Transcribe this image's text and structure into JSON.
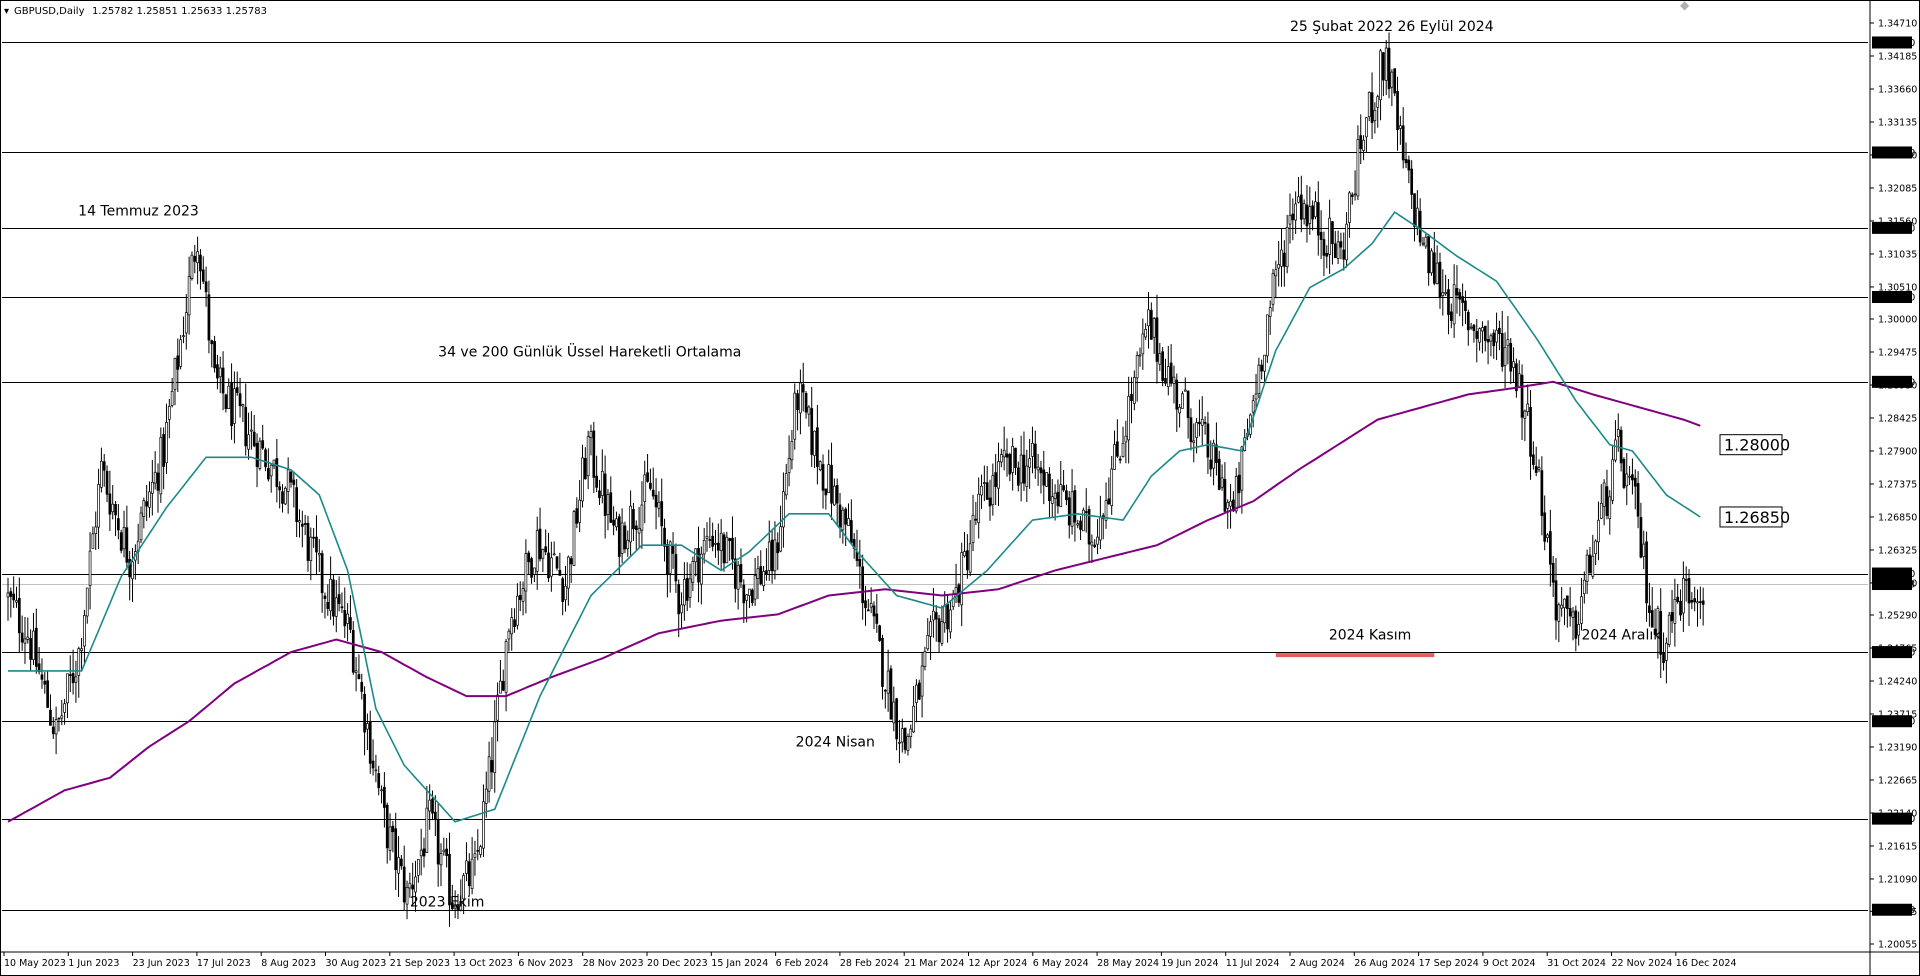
{
  "header": {
    "symbol": "GBPUSD,Daily",
    "ohlc": "1.25782 1.25851 1.25633 1.25783"
  },
  "chart_data": {
    "type": "candlestick",
    "title": "",
    "ylim": [
      1.2006,
      1.3475
    ],
    "grid": false,
    "y_ticks": [
      "1.34710",
      "1.34185",
      "1.33660",
      "1.33135",
      "1.32610",
      "1.32085",
      "1.31560",
      "1.31035",
      "1.30510",
      "1.30000",
      "1.29475",
      "1.28950",
      "1.28425",
      "1.27900",
      "1.27375",
      "1.26850",
      "1.26325",
      "1.25800",
      "1.25290",
      "1.24765",
      "1.24240",
      "1.23715",
      "1.23190",
      "1.22665",
      "1.22140",
      "1.21615",
      "1.21090",
      "1.20575",
      "1.20055"
    ],
    "horizontal_levels": [
      {
        "value": 1.344,
        "label": "1.34400"
      },
      {
        "value": 1.3265,
        "label": "1.32650"
      },
      {
        "value": 1.3145,
        "label": "1.31450"
      },
      {
        "value": 1.3035,
        "label": "1.30350"
      },
      {
        "value": 1.29,
        "label": "1.29000"
      },
      {
        "value": 1.2595,
        "label": "1.25950"
      },
      {
        "value": 1.247,
        "label": "1.24700"
      },
      {
        "value": 1.236,
        "label": "1.23600"
      },
      {
        "value": 1.2205,
        "label": "1.22050"
      },
      {
        "value": 1.206,
        "label": "1.20600"
      }
    ],
    "current_price": {
      "value": 1.25783,
      "label": "1.25783"
    },
    "x_labels": [
      "10 May 2023",
      "1 Jun 2023",
      "23 Jun 2023",
      "17 Jul 2023",
      "8 Aug 2023",
      "30 Aug 2023",
      "21 Sep 2023",
      "13 Oct 2023",
      "6 Nov 2023",
      "28 Nov 2023",
      "20 Dec 2023",
      "15 Jan 2024",
      "6 Feb 2024",
      "28 Feb 2024",
      "21 Mar 2024",
      "12 Apr 2024",
      "6 May 2024",
      "28 May 2024",
      "19 Jun 2024",
      "11 Jul 2024",
      "2 Aug 2024",
      "26 Aug 2024",
      "17 Sep 2024",
      "9 Oct 2024",
      "31 Oct 2024",
      "22 Nov 2024",
      "16 Dec 2024"
    ],
    "price_path_key_points": [
      [
        0,
        1.256
      ],
      [
        8,
        1.25
      ],
      [
        18,
        1.234
      ],
      [
        26,
        1.247
      ],
      [
        34,
        1.276
      ],
      [
        44,
        1.262
      ],
      [
        56,
        1.279
      ],
      [
        68,
        1.314
      ],
      [
        74,
        1.29
      ],
      [
        86,
        1.282
      ],
      [
        100,
        1.273
      ],
      [
        112,
        1.258
      ],
      [
        122,
        1.25
      ],
      [
        134,
        1.22
      ],
      [
        142,
        1.208
      ],
      [
        150,
        1.22
      ],
      [
        158,
        1.208
      ],
      [
        166,
        1.212
      ],
      [
        172,
        1.23
      ],
      [
        178,
        1.252
      ],
      [
        188,
        1.265
      ],
      [
        198,
        1.258
      ],
      [
        206,
        1.28
      ],
      [
        216,
        1.265
      ],
      [
        228,
        1.273
      ],
      [
        238,
        1.256
      ],
      [
        250,
        1.266
      ],
      [
        262,
        1.257
      ],
      [
        272,
        1.262
      ],
      [
        280,
        1.288
      ],
      [
        288,
        1.277
      ],
      [
        298,
        1.266
      ],
      [
        306,
        1.252
      ],
      [
        314,
        1.238
      ],
      [
        318,
        1.232
      ],
      [
        328,
        1.25
      ],
      [
        336,
        1.256
      ],
      [
        344,
        1.27
      ],
      [
        352,
        1.276
      ],
      [
        362,
        1.277
      ],
      [
        372,
        1.272
      ],
      [
        384,
        1.265
      ],
      [
        394,
        1.28
      ],
      [
        404,
        1.299
      ],
      [
        414,
        1.288
      ],
      [
        424,
        1.28
      ],
      [
        434,
        1.269
      ],
      [
        446,
        1.3
      ],
      [
        456,
        1.32
      ],
      [
        464,
        1.315
      ],
      [
        472,
        1.31
      ],
      [
        480,
        1.33
      ],
      [
        488,
        1.342
      ],
      [
        494,
        1.325
      ],
      [
        502,
        1.31
      ],
      [
        512,
        1.302
      ],
      [
        524,
        1.297
      ],
      [
        532,
        1.295
      ],
      [
        540,
        1.28
      ],
      [
        548,
        1.255
      ],
      [
        554,
        1.25
      ],
      [
        562,
        1.265
      ],
      [
        570,
        1.279
      ],
      [
        576,
        1.27
      ],
      [
        582,
        1.252
      ],
      [
        586,
        1.249
      ],
      [
        592,
        1.256
      ],
      [
        598,
        1.2578
      ]
    ],
    "ema34_key_points": [
      [
        0,
        1.244
      ],
      [
        26,
        1.244
      ],
      [
        40,
        1.259
      ],
      [
        56,
        1.27
      ],
      [
        70,
        1.278
      ],
      [
        86,
        1.278
      ],
      [
        100,
        1.276
      ],
      [
        110,
        1.272
      ],
      [
        120,
        1.26
      ],
      [
        130,
        1.238
      ],
      [
        140,
        1.229
      ],
      [
        150,
        1.224
      ],
      [
        158,
        1.22
      ],
      [
        172,
        1.222
      ],
      [
        188,
        1.24
      ],
      [
        206,
        1.256
      ],
      [
        224,
        1.264
      ],
      [
        238,
        1.264
      ],
      [
        252,
        1.26
      ],
      [
        262,
        1.263
      ],
      [
        276,
        1.269
      ],
      [
        290,
        1.269
      ],
      [
        300,
        1.263
      ],
      [
        314,
        1.256
      ],
      [
        330,
        1.254
      ],
      [
        346,
        1.26
      ],
      [
        362,
        1.268
      ],
      [
        378,
        1.269
      ],
      [
        394,
        1.268
      ],
      [
        404,
        1.275
      ],
      [
        414,
        1.279
      ],
      [
        424,
        1.28
      ],
      [
        436,
        1.279
      ],
      [
        448,
        1.295
      ],
      [
        460,
        1.305
      ],
      [
        472,
        1.308
      ],
      [
        482,
        1.312
      ],
      [
        490,
        1.317
      ],
      [
        500,
        1.314
      ],
      [
        512,
        1.31
      ],
      [
        526,
        1.306
      ],
      [
        540,
        1.297
      ],
      [
        554,
        1.287
      ],
      [
        566,
        1.28
      ],
      [
        574,
        1.279
      ],
      [
        586,
        1.272
      ],
      [
        598,
        1.2685
      ]
    ],
    "ema200_key_points": [
      [
        0,
        1.22
      ],
      [
        20,
        1.225
      ],
      [
        36,
        1.227
      ],
      [
        50,
        1.232
      ],
      [
        64,
        1.236
      ],
      [
        80,
        1.242
      ],
      [
        100,
        1.247
      ],
      [
        116,
        1.249
      ],
      [
        132,
        1.247
      ],
      [
        148,
        1.243
      ],
      [
        162,
        1.24
      ],
      [
        176,
        1.24
      ],
      [
        192,
        1.243
      ],
      [
        210,
        1.246
      ],
      [
        230,
        1.25
      ],
      [
        252,
        1.252
      ],
      [
        272,
        1.253
      ],
      [
        290,
        1.256
      ],
      [
        310,
        1.257
      ],
      [
        330,
        1.256
      ],
      [
        350,
        1.257
      ],
      [
        370,
        1.26
      ],
      [
        388,
        1.262
      ],
      [
        406,
        1.264
      ],
      [
        424,
        1.268
      ],
      [
        440,
        1.271
      ],
      [
        456,
        1.276
      ],
      [
        470,
        1.28
      ],
      [
        484,
        1.284
      ],
      [
        500,
        1.286
      ],
      [
        516,
        1.288
      ],
      [
        532,
        1.289
      ],
      [
        546,
        1.29
      ],
      [
        560,
        1.288
      ],
      [
        576,
        1.286
      ],
      [
        592,
        1.284
      ],
      [
        598,
        1.283
      ]
    ],
    "series": [
      {
        "name": "",
        "color": "#000000"
      },
      {
        "name": "",
        "color": "#1a8a8a"
      },
      {
        "name": "",
        "color": "#800080"
      }
    ],
    "annotations": [
      {
        "text": "25 Şubat 2022  26 Eylül 2024",
        "value": 1.3458,
        "bar": 453
      },
      {
        "text": "14 Temmuz 2023",
        "value": 1.3165,
        "bar": 46
      },
      {
        "text": "34 ve 200 Günlük Üssel Hareketli Ortalama",
        "value": 1.294,
        "bar": 152
      },
      {
        "text": "2024 Nisan",
        "value": 1.232,
        "bar": 296
      },
      {
        "text": "2023 Ekim",
        "value": 1.2065,
        "bar": 142
      },
      {
        "text": "2024 Kasım",
        "value": 1.249,
        "bar": 495
      },
      {
        "text": "2024 Aralık",
        "value": 1.249,
        "bar": 556
      }
    ],
    "boxed_labels": [
      {
        "text": "1.28000",
        "value": 1.28
      },
      {
        "text": "1.26850",
        "value": 1.2685
      }
    ],
    "support_zone": {
      "value": 1.247,
      "color": "#e06060"
    }
  }
}
